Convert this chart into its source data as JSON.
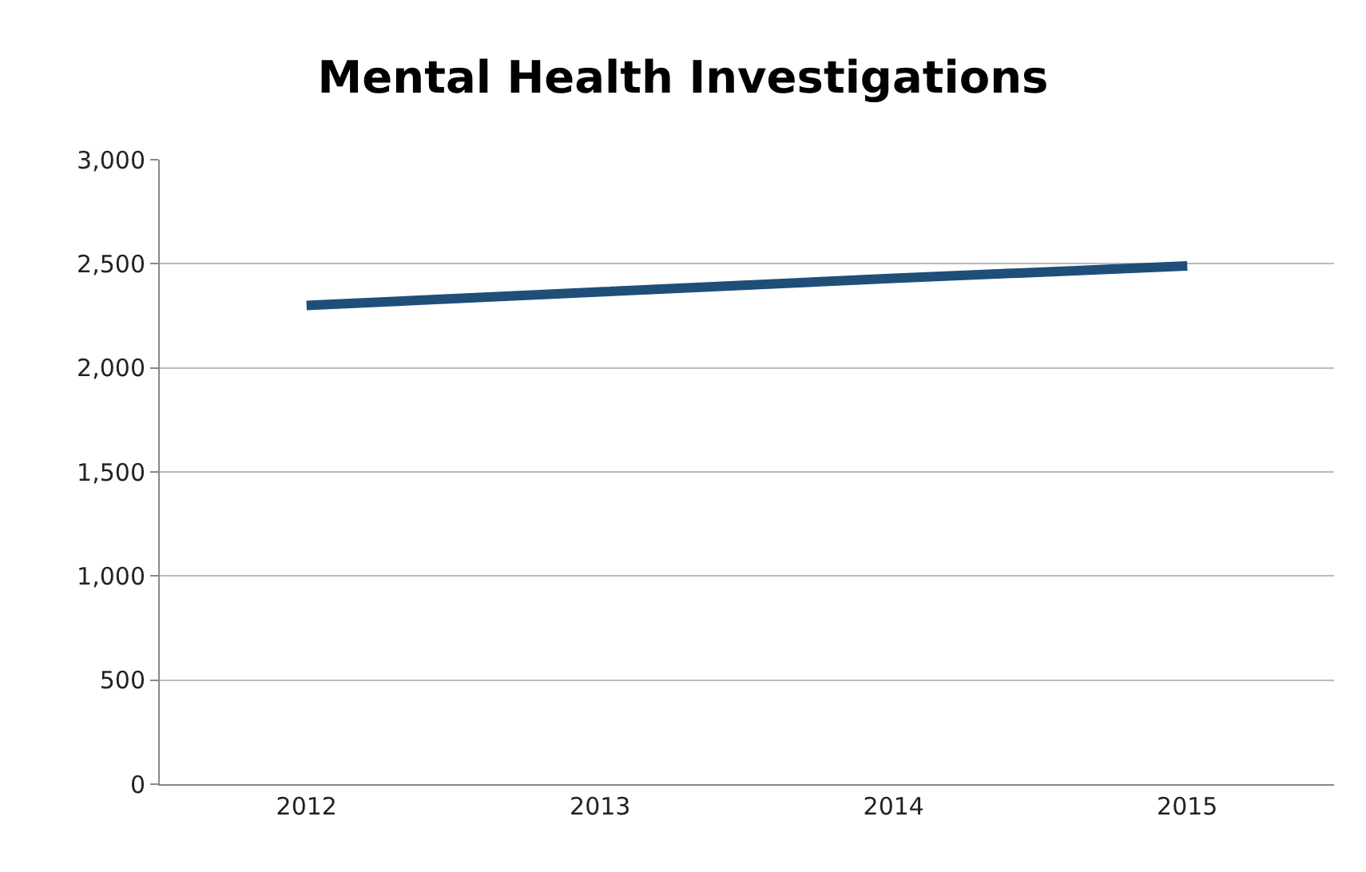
{
  "chart_data": {
    "type": "line",
    "title": "Mental Health Investigations",
    "categories": [
      "2012",
      "2013",
      "2014",
      "2015"
    ],
    "series": [
      {
        "color": "#1f4e79",
        "values": [
          2300,
          2365,
          2430,
          2490
        ]
      }
    ],
    "ylim": [
      0,
      3000
    ],
    "yticks": [
      {
        "value": 0,
        "label": "0"
      },
      {
        "value": 500,
        "label": "500"
      },
      {
        "value": 1000,
        "label": "1,000"
      },
      {
        "value": 1500,
        "label": "1,500"
      },
      {
        "value": 2000,
        "label": "2,000"
      },
      {
        "value": 2500,
        "label": "2,500"
      },
      {
        "value": 3000,
        "label": "3,000"
      }
    ],
    "grid": "y",
    "marker": "none",
    "line_style": "solid"
  }
}
